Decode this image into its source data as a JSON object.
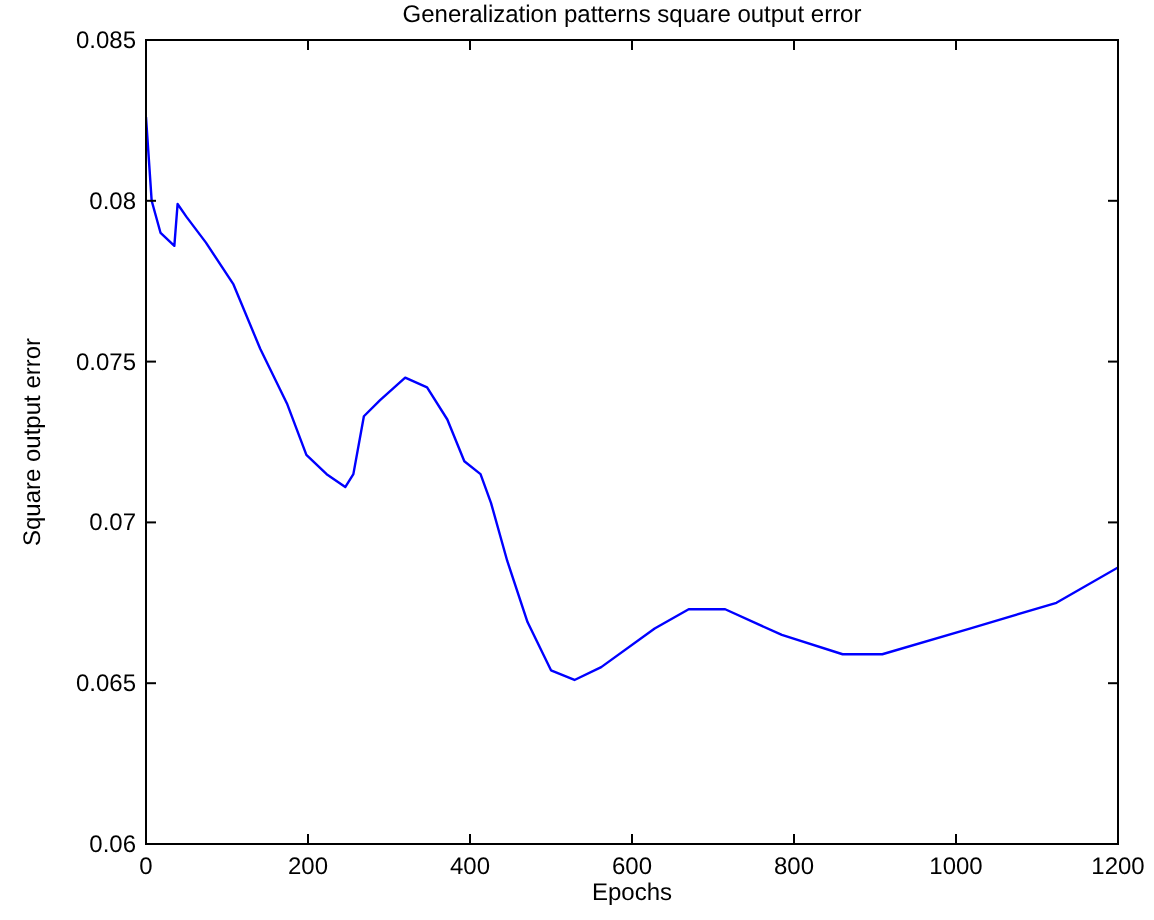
{
  "chart_data": {
    "type": "line",
    "title": "Generalization patterns square output error",
    "xlabel": "Epochs",
    "ylabel": "Square output error",
    "xlim": [
      0,
      1200
    ],
    "xticks": [
      0,
      200,
      400,
      600,
      800,
      1000,
      1200
    ],
    "ylim": [
      0.06,
      0.085
    ],
    "yticks": [
      0.06,
      0.065,
      0.07,
      0.075,
      0.08,
      0.085
    ],
    "grid": false,
    "marker": "none",
    "line_style": "solid",
    "series": [
      {
        "color": "#0000ff",
        "x": [
          0,
          7,
          18,
          35,
          39,
          50,
          74,
          108,
          141,
          174,
          198,
          223,
          246,
          256,
          269,
          289,
          320,
          347,
          372,
          393,
          413,
          426,
          446,
          471,
          500,
          529,
          562,
          628,
          670,
          715,
          785,
          860,
          909,
          1017,
          1124,
          1200
        ],
        "values": [
          0.0826,
          0.08,
          0.079,
          0.0786,
          0.0799,
          0.0795,
          0.0787,
          0.0774,
          0.0754,
          0.0737,
          0.0721,
          0.0715,
          0.0711,
          0.0715,
          0.0733,
          0.0738,
          0.0745,
          0.0742,
          0.0732,
          0.0719,
          0.0715,
          0.0706,
          0.0688,
          0.0669,
          0.0654,
          0.0651,
          0.0655,
          0.0667,
          0.0673,
          0.0673,
          0.0665,
          0.0659,
          0.0659,
          0.0667,
          0.0675,
          0.0686
        ]
      }
    ]
  }
}
